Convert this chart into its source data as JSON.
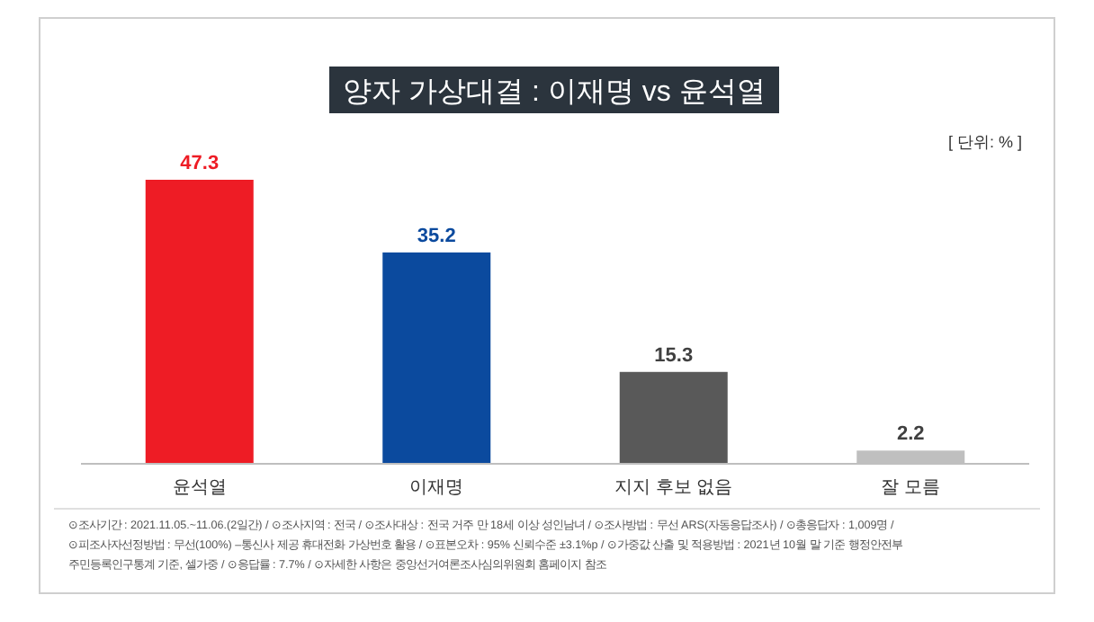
{
  "chart_data": {
    "type": "bar",
    "title": "양자 가상대결 : 이재명 vs 윤석열",
    "categories": [
      "윤석열",
      "이재명",
      "지지 후보 없음",
      "잘 모름"
    ],
    "values": [
      47.3,
      35.2,
      15.3,
      2.2
    ],
    "colors": [
      "#ee1c25",
      "#0b4a9e",
      "#595959",
      "#bfbfbf"
    ],
    "data_labels": true,
    "annotations": [
      "[ 단위: % ]",
      "⊙조사기간 : 2021.11.05.~11.06.(2일간) / ⊙조사지역 : 전국 / ⊙조사대상 : 전국 거주 만 18세 이상 성인남녀 / ⊙조사방법 : 무선 ARS(자동응답조사) / ⊙총응답자 : 1,009명 /",
      "⊙피조사자선정방법 : 무선(100%) –통신사 제공 휴대전화 가상번호 활용 / ⊙표본오차 : 95% 신뢰수준 ±3.1%p / ⊙가중값 산출 및 적용방법 : 2021년 10월 말 기준 행정안전부",
      "주민등록인구통계 기준, 셀가중 / ⊙응답률 : 7.7% / ⊙자세한 사항은 중앙선거여론조사심의위원회 홈페이지 참조"
    ]
  }
}
